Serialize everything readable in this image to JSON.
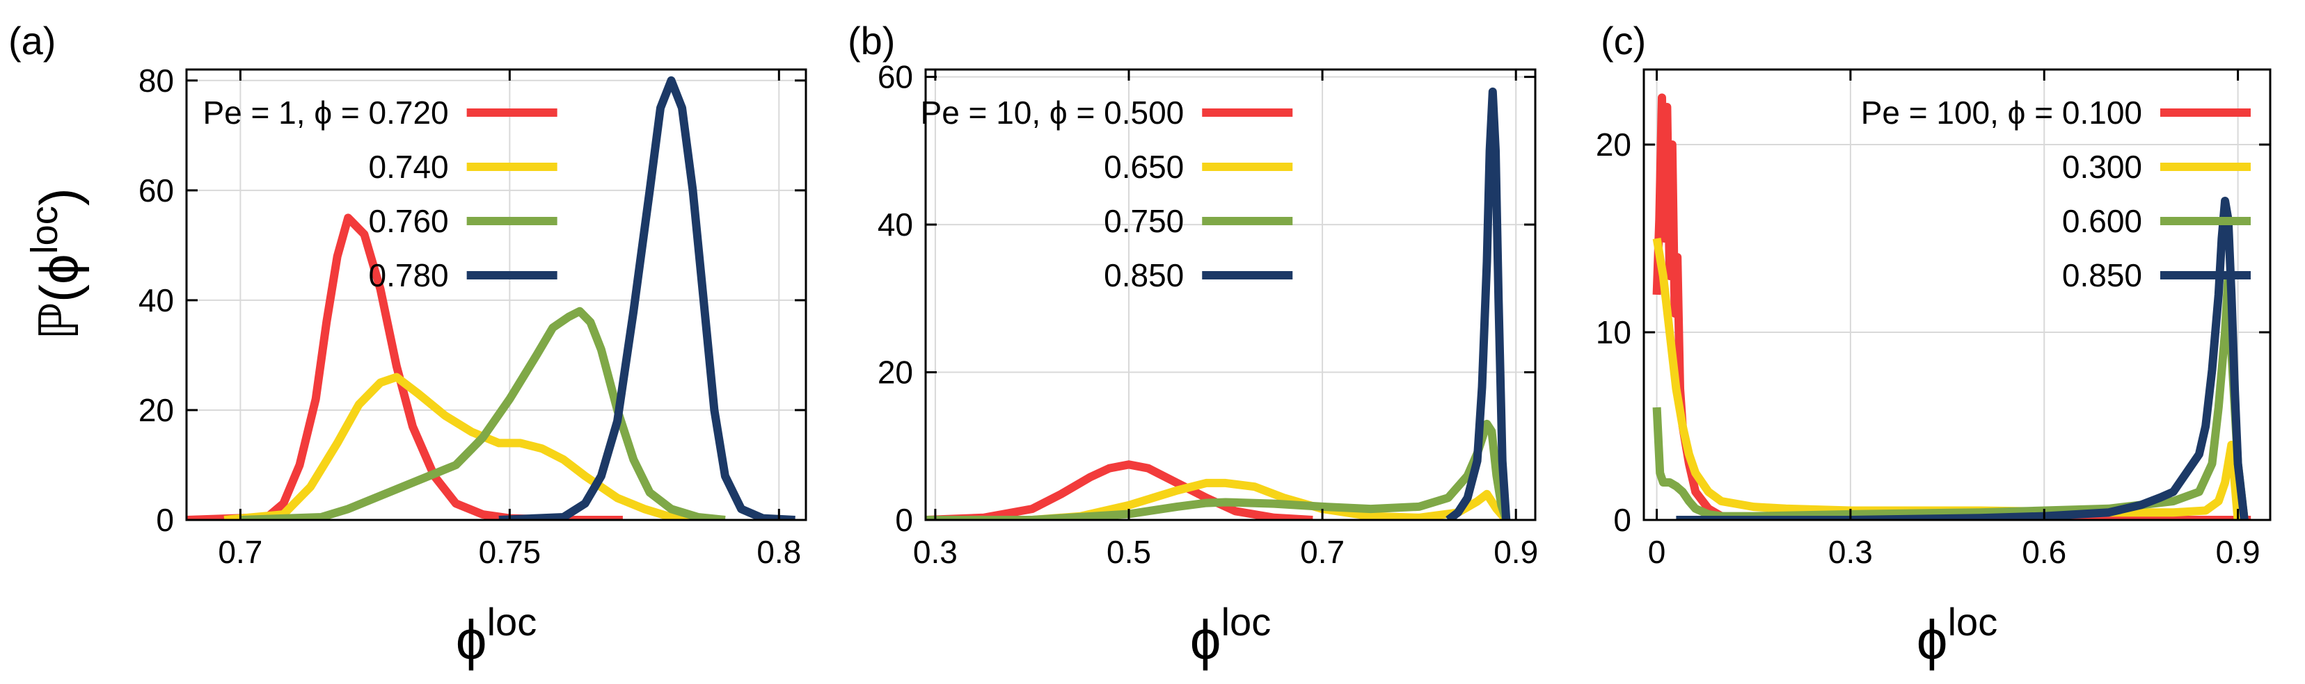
{
  "figure": {
    "ylabel_main": "ℙ(ϕ",
    "ylabel_sup": "loc",
    "ylabel_close": ")"
  },
  "colors": {
    "red": "#f23b3b",
    "yellow": "#f7d417",
    "green": "#7fa847",
    "navy": "#1c3966",
    "frame": "#000000",
    "grid": "#d9d9d9"
  },
  "chart_data": [
    {
      "panel_label": "(a)",
      "type": "line",
      "xlabel_main": "ϕ",
      "xlabel_sup": "loc",
      "xlim": [
        0.69,
        0.805
      ],
      "ylim": [
        0,
        82
      ],
      "xticks": [
        0.7,
        0.75,
        0.8
      ],
      "xtick_labels": [
        "0.7",
        "0.75",
        "0.8"
      ],
      "yticks": [
        0,
        20,
        40,
        60,
        80
      ],
      "ytick_labels": [
        "0",
        "20",
        "40",
        "60",
        "80"
      ],
      "legend": {
        "prefix": "Pe = 1, ϕ = ",
        "location": "top-left"
      },
      "series": [
        {
          "name": "0.720",
          "color_key": "red",
          "x": [
            0.69,
            0.705,
            0.708,
            0.711,
            0.714,
            0.716,
            0.718,
            0.72,
            0.723,
            0.726,
            0.729,
            0.732,
            0.736,
            0.74,
            0.745,
            0.75,
            0.76,
            0.771
          ],
          "y": [
            0,
            0.5,
            3,
            10,
            22,
            36,
            48,
            55,
            52,
            42,
            28,
            17,
            8,
            3,
            1,
            0.3,
            0,
            0
          ]
        },
        {
          "name": "0.740",
          "color_key": "yellow",
          "x": [
            0.697,
            0.708,
            0.713,
            0.718,
            0.722,
            0.726,
            0.729,
            0.733,
            0.738,
            0.743,
            0.748,
            0.752,
            0.756,
            0.76,
            0.764,
            0.77,
            0.775,
            0.78,
            0.79
          ],
          "y": [
            0,
            1,
            6,
            14,
            21,
            25,
            26,
            23,
            19,
            16,
            14,
            14,
            13,
            11,
            8,
            4,
            2,
            0.5,
            0
          ]
        },
        {
          "name": "0.760",
          "color_key": "green",
          "x": [
            0.7,
            0.715,
            0.72,
            0.73,
            0.74,
            0.745,
            0.75,
            0.755,
            0.758,
            0.761,
            0.763,
            0.765,
            0.767,
            0.77,
            0.773,
            0.776,
            0.78,
            0.785,
            0.79
          ],
          "y": [
            0,
            0.5,
            2,
            6,
            10,
            15,
            22,
            30,
            35,
            37,
            38,
            36,
            31,
            20,
            11,
            5,
            2,
            0.5,
            0
          ]
        },
        {
          "name": "0.780",
          "color_key": "navy",
          "x": [
            0.748,
            0.76,
            0.764,
            0.767,
            0.77,
            0.773,
            0.776,
            0.778,
            0.78,
            0.782,
            0.784,
            0.786,
            0.788,
            0.79,
            0.793,
            0.797,
            0.803
          ],
          "y": [
            0,
            0.5,
            3,
            8,
            18,
            38,
            60,
            75,
            80,
            75,
            60,
            40,
            20,
            8,
            2,
            0.3,
            0
          ]
        }
      ]
    },
    {
      "panel_label": "(b)",
      "type": "line",
      "xlabel_main": "ϕ",
      "xlabel_sup": "loc",
      "xlim": [
        0.29,
        0.92
      ],
      "ylim": [
        0,
        61
      ],
      "xticks": [
        0.3,
        0.5,
        0.7,
        0.9
      ],
      "xtick_labels": [
        "0.3",
        "0.5",
        "0.7",
        "0.9"
      ],
      "yticks": [
        0,
        20,
        40,
        60
      ],
      "ytick_labels": [
        "0",
        "20",
        "40",
        "60"
      ],
      "legend": {
        "prefix": "Pe = 10, ϕ = ",
        "location": "top-left"
      },
      "series": [
        {
          "name": "0.500",
          "color_key": "red",
          "x": [
            0.29,
            0.35,
            0.4,
            0.43,
            0.46,
            0.48,
            0.5,
            0.52,
            0.55,
            0.58,
            0.61,
            0.65,
            0.69
          ],
          "y": [
            0,
            0.3,
            1.5,
            3.5,
            5.8,
            7,
            7.5,
            7,
            5,
            3,
            1.2,
            0.3,
            0
          ]
        },
        {
          "name": "0.650",
          "color_key": "yellow",
          "x": [
            0.29,
            0.4,
            0.45,
            0.5,
            0.55,
            0.58,
            0.6,
            0.63,
            0.66,
            0.7,
            0.75,
            0.8,
            0.84,
            0.86,
            0.87,
            0.88,
            0.89
          ],
          "y": [
            0,
            0,
            0.5,
            2,
            4,
            5,
            5,
            4.5,
            3,
            1.5,
            0.5,
            0.3,
            1,
            2.5,
            3.5,
            1.5,
            0
          ]
        },
        {
          "name": "0.750",
          "color_key": "green",
          "x": [
            0.29,
            0.4,
            0.5,
            0.55,
            0.58,
            0.6,
            0.65,
            0.7,
            0.75,
            0.8,
            0.83,
            0.85,
            0.86,
            0.87,
            0.875,
            0.88,
            0.885,
            0.89
          ],
          "y": [
            0,
            0,
            0.8,
            1.8,
            2.3,
            2.4,
            2.2,
            1.8,
            1.5,
            1.8,
            3,
            6,
            9,
            13,
            12,
            6,
            2,
            0
          ]
        },
        {
          "name": "0.850",
          "color_key": "navy",
          "x": [
            0.83,
            0.84,
            0.85,
            0.86,
            0.865,
            0.87,
            0.873,
            0.876,
            0.879,
            0.882,
            0.886,
            0.89
          ],
          "y": [
            0,
            1,
            3,
            8,
            18,
            35,
            50,
            58,
            50,
            30,
            8,
            0
          ]
        }
      ]
    },
    {
      "panel_label": "(c)",
      "type": "line",
      "xlabel_main": "ϕ",
      "xlabel_sup": "loc",
      "xlim": [
        -0.02,
        0.95
      ],
      "ylim": [
        0,
        24
      ],
      "xticks": [
        0,
        0.3,
        0.6,
        0.9
      ],
      "xtick_labels": [
        "0",
        "0.3",
        "0.6",
        "0.9"
      ],
      "yticks": [
        0,
        10,
        20
      ],
      "ytick_labels": [
        "0",
        "10",
        "20"
      ],
      "legend": {
        "prefix": "Pe = 100, ϕ = ",
        "location": "top-right"
      },
      "series": [
        {
          "name": "0.100",
          "color_key": "red",
          "x": [
            0,
            0.004,
            0.008,
            0.012,
            0.016,
            0.02,
            0.024,
            0.028,
            0.032,
            0.036,
            0.04,
            0.05,
            0.06,
            0.08,
            0.1,
            0.15,
            0.3,
            0.6,
            0.85,
            0.92
          ],
          "y": [
            12,
            16,
            22.5,
            15,
            22,
            13,
            20,
            11,
            14,
            7,
            5,
            3,
            1.5,
            0.6,
            0.2,
            0.05,
            0,
            0,
            0,
            0
          ]
        },
        {
          "name": "0.300",
          "color_key": "yellow",
          "x": [
            0,
            0.01,
            0.02,
            0.03,
            0.04,
            0.05,
            0.06,
            0.08,
            0.1,
            0.15,
            0.2,
            0.3,
            0.5,
            0.7,
            0.8,
            0.85,
            0.87,
            0.88,
            0.89,
            0.9
          ],
          "y": [
            15,
            13,
            10,
            7,
            5,
            3.5,
            2.5,
            1.5,
            1,
            0.7,
            0.6,
            0.5,
            0.5,
            0.4,
            0.4,
            0.5,
            1,
            2,
            4,
            0
          ]
        },
        {
          "name": "0.600",
          "color_key": "green",
          "x": [
            0,
            0.005,
            0.01,
            0.02,
            0.03,
            0.04,
            0.05,
            0.06,
            0.08,
            0.1,
            0.15,
            0.3,
            0.5,
            0.7,
            0.8,
            0.84,
            0.86,
            0.87,
            0.88,
            0.885,
            0.89,
            0.9,
            0.91
          ],
          "y": [
            6,
            2.5,
            2,
            2,
            1.8,
            1.5,
            1,
            0.6,
            0.3,
            0.2,
            0.2,
            0.3,
            0.4,
            0.6,
            1,
            1.5,
            3,
            6,
            10,
            13,
            9,
            3,
            0
          ]
        },
        {
          "name": "0.850",
          "color_key": "navy",
          "x": [
            0.03,
            0.1,
            0.3,
            0.5,
            0.6,
            0.7,
            0.75,
            0.78,
            0.8,
            0.82,
            0.84,
            0.85,
            0.86,
            0.87,
            0.875,
            0.88,
            0.885,
            0.89,
            0.895,
            0.9,
            0.91
          ],
          "y": [
            0,
            0,
            0,
            0.1,
            0.2,
            0.4,
            0.8,
            1.2,
            1.5,
            2.5,
            3.5,
            5,
            8,
            12,
            15,
            17,
            16,
            12,
            7,
            3,
            0
          ]
        }
      ]
    }
  ]
}
